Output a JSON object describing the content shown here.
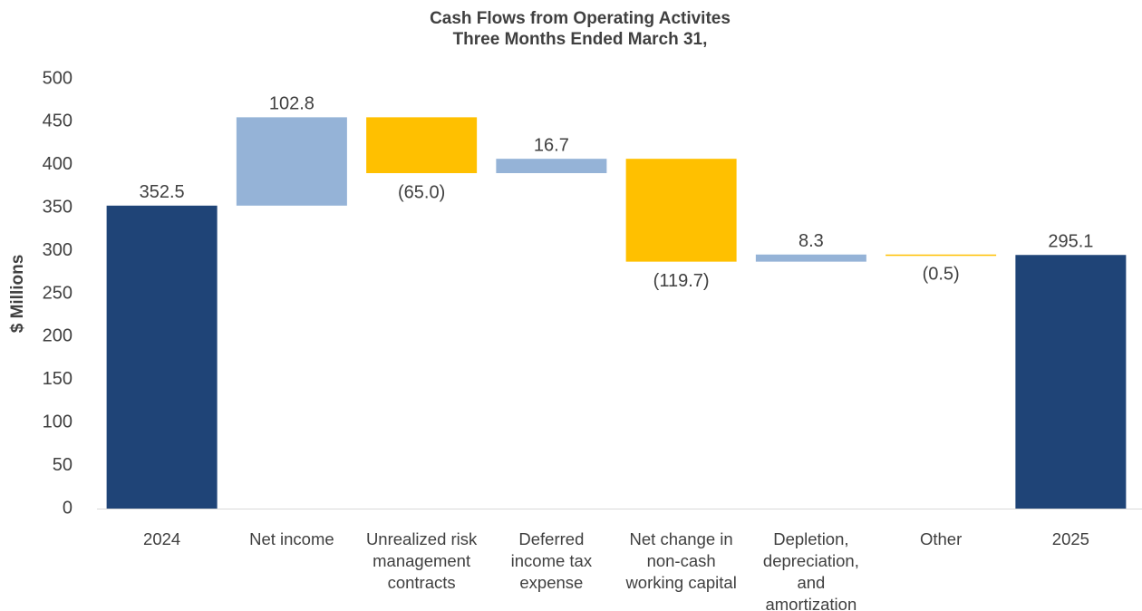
{
  "chart_data": {
    "type": "waterfall",
    "title": "Cash Flows from Operating Activites",
    "subtitle": "Three Months Ended March 31,",
    "y_label": "$ Millions",
    "categories": [
      "2024",
      "Net income",
      "Unrealized risk\nmanagement\ncontracts",
      "Deferred\nincome tax\nexpense",
      "Net change in\nnon-cash\nworking capital",
      "Depletion,\ndepreciation,\nand\namortization",
      "Other",
      "2025"
    ],
    "values": [
      352.5,
      102.8,
      -65.0,
      16.7,
      -119.7,
      8.3,
      -0.5,
      295.1
    ],
    "value_labels": [
      "352.5",
      "102.8",
      "(65.0)",
      "16.7",
      "(119.7)",
      "8.3",
      "(0.5)",
      "295.1"
    ],
    "totals": [
      true,
      false,
      false,
      false,
      false,
      false,
      false,
      true
    ],
    "colors": {
      "total": "#1f4477",
      "increase": "#95b3d7",
      "decrease": "#ffc000"
    },
    "ylim": [
      0,
      500
    ],
    "yticks": [
      0,
      50,
      100,
      150,
      200,
      250,
      300,
      350,
      400,
      450,
      500
    ],
    "grid": false
  }
}
